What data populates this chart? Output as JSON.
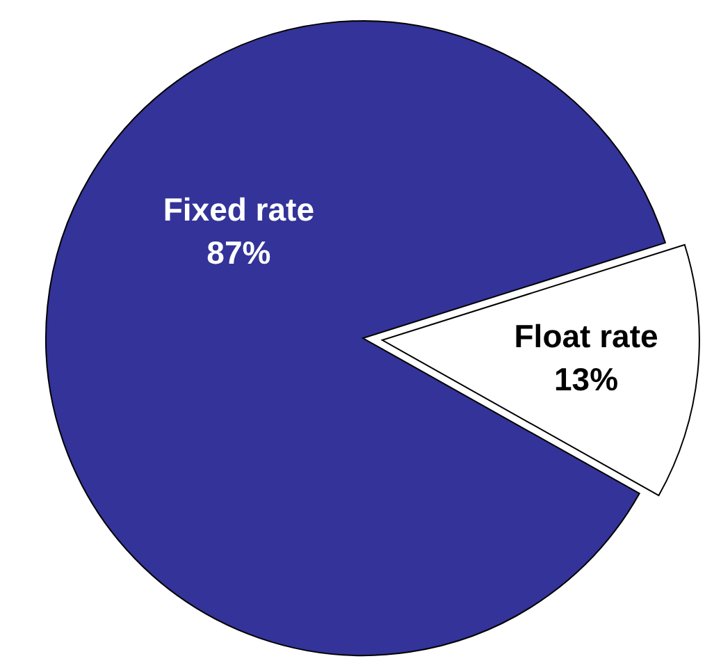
{
  "chart_data": {
    "type": "pie",
    "categories": [
      "Fixed rate",
      "Float rate"
    ],
    "values": [
      87,
      13
    ],
    "colors": [
      "#333399",
      "#ffffff"
    ],
    "value_labels": [
      "87%",
      "13%"
    ]
  }
}
